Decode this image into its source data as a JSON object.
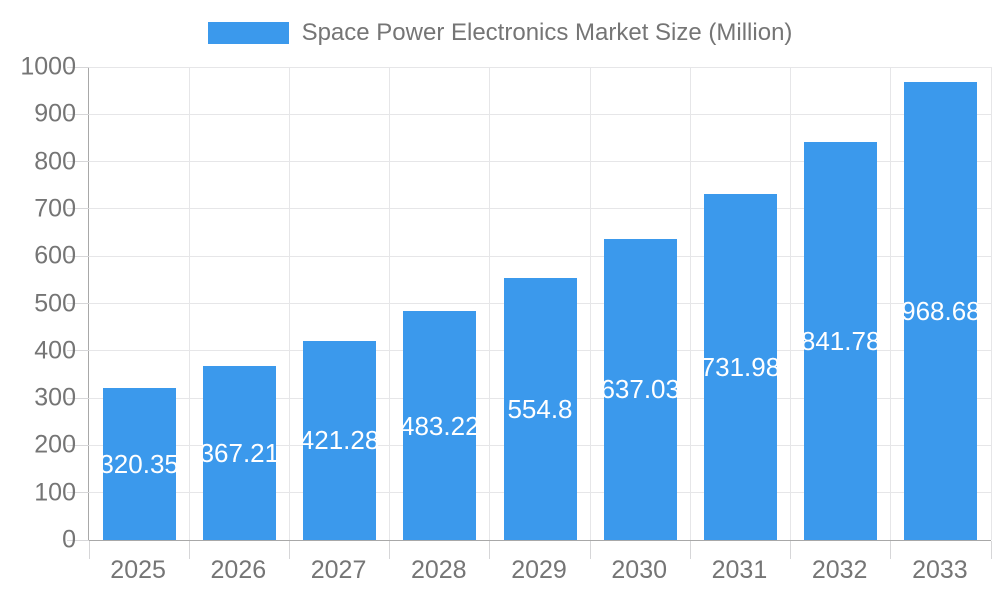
{
  "legend": {
    "label": "Space Power Electronics Market Size (Million)"
  },
  "chart_data": {
    "type": "bar",
    "title": "Space Power Electronics Market Size (Million)",
    "series_name": "Space Power Electronics Market Size (Million)",
    "categories": [
      "2025",
      "2026",
      "2027",
      "2028",
      "2029",
      "2030",
      "2031",
      "2032",
      "2033"
    ],
    "values": [
      320.35,
      367.21,
      421.28,
      483.22,
      554.8,
      637.03,
      731.98,
      841.78,
      968.68
    ],
    "value_labels": [
      "320.35",
      "367.21",
      "421.28",
      "483.22",
      "554.8",
      "637.03",
      "731.98",
      "841.78",
      "968.68"
    ],
    "xlabel": "",
    "ylabel": "",
    "ylim": [
      0,
      1000
    ],
    "y_tick_step": 100,
    "y_tick_labels": [
      "0",
      "100",
      "200",
      "300",
      "400",
      "500",
      "600",
      "700",
      "800",
      "900",
      "1000"
    ],
    "grid": true,
    "legend_position": "top-center",
    "style": {
      "bar_color": "#3b99ec",
      "value_label_color": "#ffffff",
      "axis_line_color": "#a8a8a8",
      "gridline_color": "#e6e6e8",
      "tick_color": "#d6d6d8",
      "tick_label_color": "#757575",
      "legend_text_color": "#757575",
      "background_color": "#ffffff"
    }
  }
}
